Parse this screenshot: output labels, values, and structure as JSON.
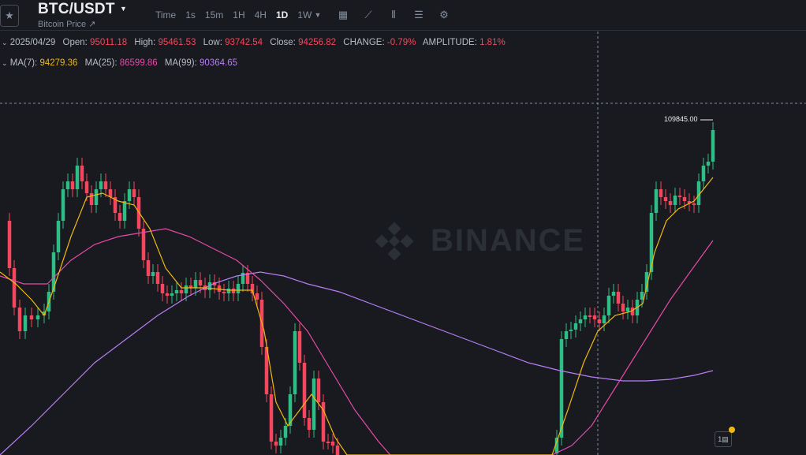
{
  "header": {
    "pair": "BTC/USDT",
    "subtitle": "Bitcoin Price ↗",
    "intervals": [
      "Time",
      "1s",
      "15m",
      "1H",
      "4H",
      "1D",
      "1W"
    ],
    "active_interval": "1D"
  },
  "ohlc": {
    "date": "2025/04/29",
    "open_label": "Open:",
    "open": "95011.18",
    "high_label": "High:",
    "high": "95461.53",
    "low_label": "Low:",
    "low": "93742.54",
    "close_label": "Close:",
    "close": "94256.82",
    "change_label": "CHANGE:",
    "change": "-0.79%",
    "amp_label": "AMPLITUDE:",
    "amplitude": "1.81%"
  },
  "ma": {
    "ma7_label": "MA(7):",
    "ma7": "94279.36",
    "ma25_label": "MA(25):",
    "ma25": "86599.86",
    "ma99_label": "MA(99):",
    "ma99": "90364.65"
  },
  "chart": {
    "max_price_tag": "109845.00",
    "watermark": "BINANCE",
    "colors": {
      "up": "#2ebd85",
      "down": "#f6465d",
      "ma7": "#f0b90b",
      "ma25": "#e849a8",
      "ma99": "#b77ef5"
    }
  }
}
